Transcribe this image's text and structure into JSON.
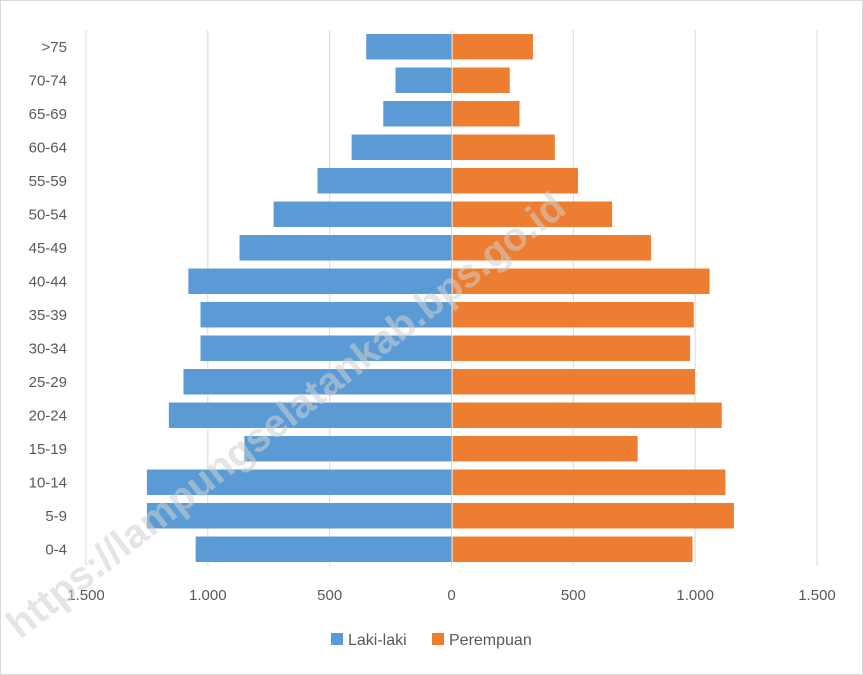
{
  "chart_data": {
    "type": "bar",
    "orientation": "horizontal",
    "layout": "population-pyramid",
    "categories": [
      "0-4",
      "5-9",
      "10-14",
      "15-19",
      "20-24",
      "25-29",
      "30-34",
      "35-39",
      "40-44",
      "45-49",
      "50-54",
      "55-59",
      "60-64",
      "65-69",
      "70-74",
      ">75"
    ],
    "series": [
      {
        "name": "Laki-laki",
        "color": "#5b9bd5",
        "values": [
          1050,
          1250,
          1250,
          850,
          1160,
          1100,
          1030,
          1030,
          1080,
          870,
          730,
          550,
          410,
          280,
          230,
          350
        ]
      },
      {
        "name": "Perempuan",
        "color": "#ed7d31",
        "values": [
          985,
          1155,
          1120,
          760,
          1105,
          995,
          975,
          990,
          1055,
          815,
          655,
          515,
          420,
          275,
          235,
          330
        ]
      }
    ],
    "x_ticks": [
      "1.500",
      "1.000",
      "500",
      "0",
      "500",
      "1.000",
      "1.500"
    ],
    "xlim": [
      -1500,
      1500
    ],
    "grid": "vertical",
    "legend": "bottom-center",
    "title": "",
    "xlabel": "",
    "ylabel": ""
  },
  "watermark": "https://lampungselatankab.bps.go.id"
}
